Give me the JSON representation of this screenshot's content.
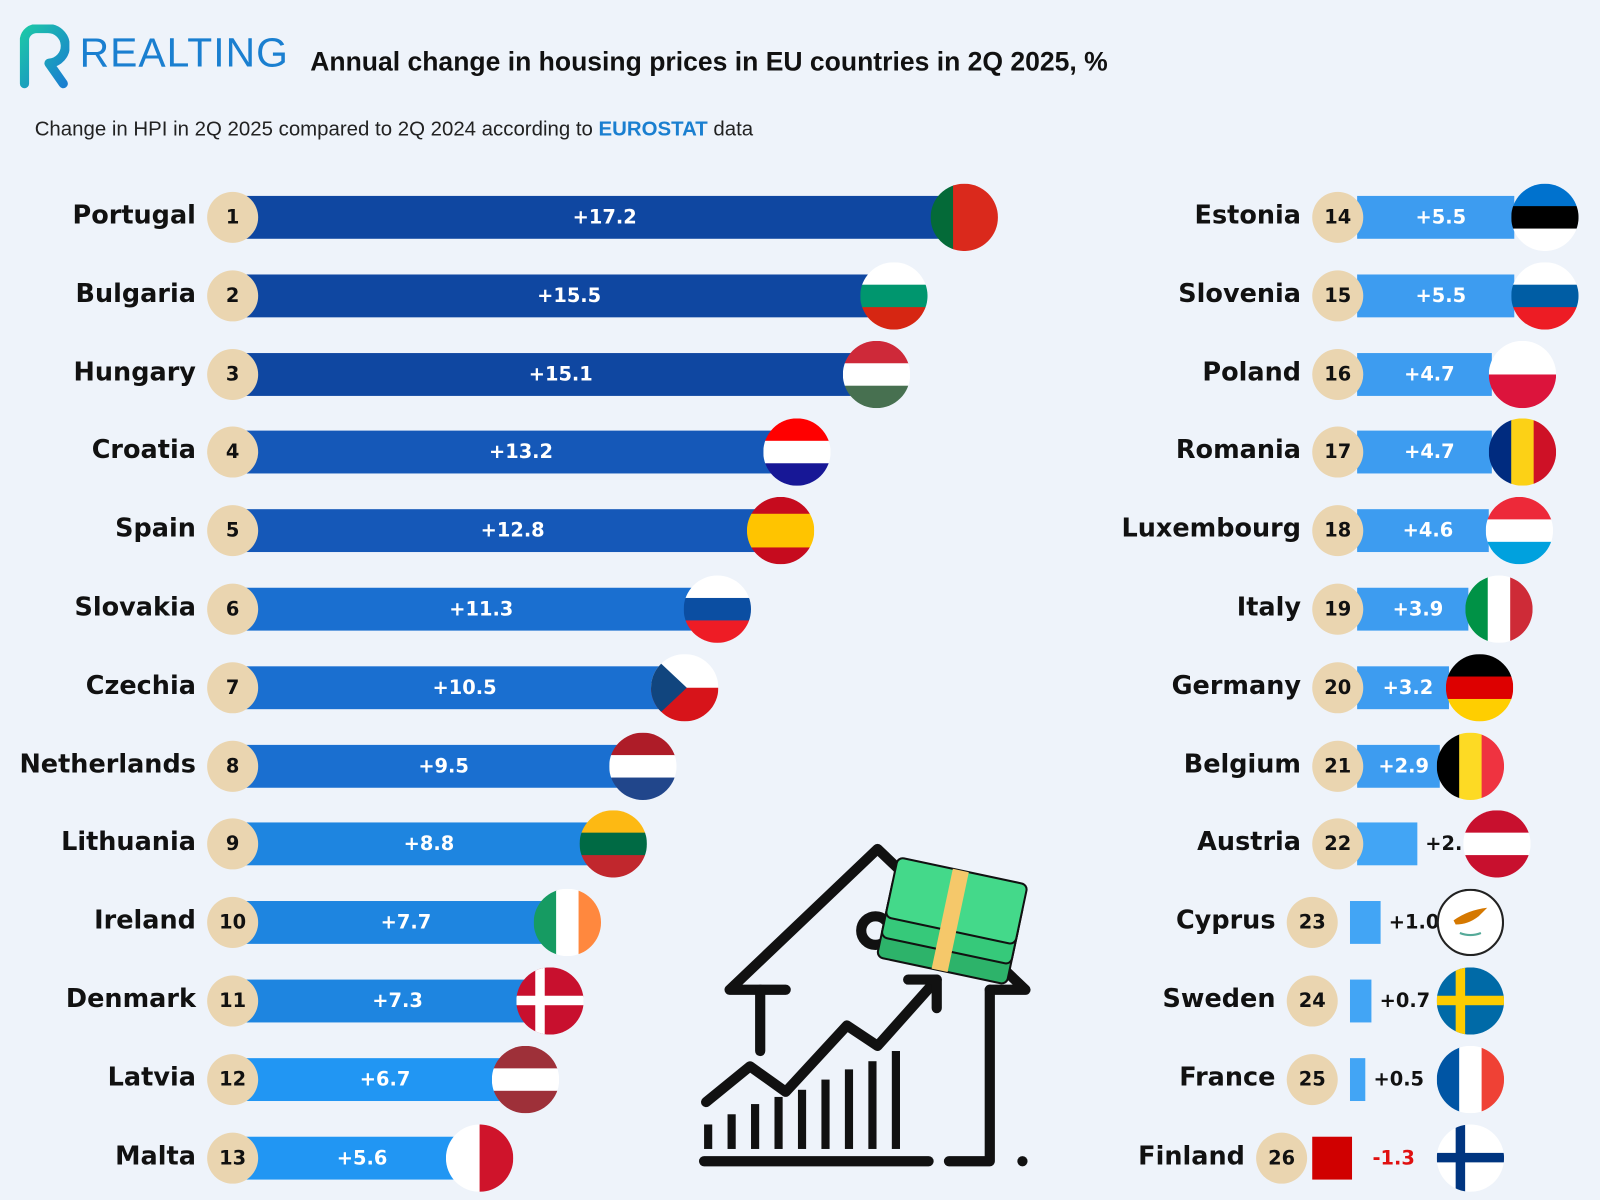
{
  "brand": {
    "name": "REALTING"
  },
  "header": {
    "title": "Annual change in housing prices in EU countries in 2Q 2025, %",
    "subtitle_pre": "Change in HPI in 2Q 2025 compared to 2Q 2024 according to",
    "subtitle_source": "EUROSTAT",
    "subtitle_post": "data"
  },
  "chart_data": {
    "type": "bar",
    "orientation": "horizontal",
    "title": "Annual change in housing prices in EU countries in 2Q 2025, %",
    "rows": [
      {
        "rank": "1",
        "country": "Portugal",
        "value": 17.2,
        "label": "+17.2",
        "color": "#0f47a1",
        "flag": {
          "type": "v",
          "colors": [
            "#046a38",
            "#da291c",
            "#da291c"
          ]
        }
      },
      {
        "rank": "2",
        "country": "Bulgaria",
        "value": 15.5,
        "label": "+15.5",
        "color": "#0f47a1",
        "flag": {
          "type": "h",
          "colors": [
            "#ffffff",
            "#00966e",
            "#d62612"
          ]
        }
      },
      {
        "rank": "3",
        "country": "Hungary",
        "value": 15.1,
        "label": "+15.1",
        "color": "#0f47a1",
        "flag": {
          "type": "h",
          "colors": [
            "#ce2939",
            "#ffffff",
            "#477050"
          ]
        }
      },
      {
        "rank": "4",
        "country": "Croatia",
        "value": 13.2,
        "label": "+13.2",
        "color": "#1558b8",
        "flag": {
          "type": "h",
          "colors": [
            "#ff0000",
            "#ffffff",
            "#171796"
          ]
        }
      },
      {
        "rank": "5",
        "country": "Spain",
        "value": 12.8,
        "label": "+12.8",
        "color": "#1558b8",
        "flag": {
          "type": "h",
          "colors": [
            "#c60b1e",
            "#ffc400",
            "#ffc400",
            "#c60b1e"
          ]
        }
      },
      {
        "rank": "6",
        "country": "Slovakia",
        "value": 11.3,
        "label": "+11.3",
        "color": "#1a6fd0",
        "flag": {
          "type": "h",
          "colors": [
            "#ffffff",
            "#0b4ea2",
            "#ee1c25"
          ]
        }
      },
      {
        "rank": "7",
        "country": "Czechia",
        "value": 10.5,
        "label": "+10.5",
        "color": "#1a6fd0",
        "flag": {
          "type": "cz",
          "colors": [
            "#ffffff",
            "#d7141a",
            "#11457e"
          ]
        }
      },
      {
        "rank": "8",
        "country": "Netherlands",
        "value": 9.5,
        "label": "+9.5",
        "color": "#1a6fd0",
        "flag": {
          "type": "h",
          "colors": [
            "#ae1c28",
            "#ffffff",
            "#21468b"
          ]
        }
      },
      {
        "rank": "9",
        "country": "Lithuania",
        "value": 8.8,
        "label": "+8.8",
        "color": "#1e85e0",
        "flag": {
          "type": "h",
          "colors": [
            "#fdb913",
            "#006a44",
            "#c1272d"
          ]
        }
      },
      {
        "rank": "10",
        "country": "Ireland",
        "value": 7.7,
        "label": "+7.7",
        "color": "#1e85e0",
        "flag": {
          "type": "v",
          "colors": [
            "#169b62",
            "#ffffff",
            "#ff883e"
          ]
        }
      },
      {
        "rank": "11",
        "country": "Denmark",
        "value": 7.3,
        "label": "+7.3",
        "color": "#1e85e0",
        "flag": {
          "type": "nordic",
          "colors": [
            "#c8102e",
            "#ffffff"
          ]
        }
      },
      {
        "rank": "12",
        "country": "Latvia",
        "value": 6.7,
        "label": "+6.7",
        "color": "#2196f3",
        "flag": {
          "type": "h",
          "colors": [
            "#9e3039",
            "#ffffff",
            "#9e3039"
          ]
        }
      },
      {
        "rank": "13",
        "country": "Malta",
        "value": 5.6,
        "label": "+5.6",
        "color": "#2196f3",
        "flag": {
          "type": "v",
          "colors": [
            "#ffffff",
            "#cf142b"
          ]
        }
      },
      {
        "rank": "14",
        "country": "Estonia",
        "value": 5.5,
        "label": "+5.5",
        "color": "#3d9cf0",
        "flag": {
          "type": "h",
          "colors": [
            "#0072ce",
            "#000000",
            "#ffffff"
          ]
        }
      },
      {
        "rank": "15",
        "country": "Slovenia",
        "value": 5.5,
        "label": "+5.5",
        "color": "#3d9cf0",
        "flag": {
          "type": "h",
          "colors": [
            "#ffffff",
            "#005da4",
            "#ed1c24"
          ]
        }
      },
      {
        "rank": "16",
        "country": "Poland",
        "value": 4.7,
        "label": "+4.7",
        "color": "#3d9cf0",
        "flag": {
          "type": "h",
          "colors": [
            "#ffffff",
            "#dc143c"
          ]
        }
      },
      {
        "rank": "17",
        "country": "Romania",
        "value": 4.7,
        "label": "+4.7",
        "color": "#3d9cf0",
        "flag": {
          "type": "v",
          "colors": [
            "#002b7f",
            "#fcd116",
            "#ce1126"
          ]
        }
      },
      {
        "rank": "18",
        "country": "Luxembourg",
        "value": 4.6,
        "label": "+4.6",
        "color": "#3d9cf0",
        "flag": {
          "type": "h",
          "colors": [
            "#ed2939",
            "#ffffff",
            "#00a1de"
          ]
        }
      },
      {
        "rank": "19",
        "country": "Italy",
        "value": 3.9,
        "label": "+3.9",
        "color": "#3d9cf0",
        "flag": {
          "type": "v",
          "colors": [
            "#009246",
            "#ffffff",
            "#ce2b37"
          ]
        }
      },
      {
        "rank": "20",
        "country": "Germany",
        "value": 3.2,
        "label": "+3.2",
        "color": "#3d9cf0",
        "flag": {
          "type": "h",
          "colors": [
            "#000000",
            "#dd0000",
            "#ffce00"
          ]
        }
      },
      {
        "rank": "21",
        "country": "Belgium",
        "value": 2.9,
        "label": "+2.9",
        "color": "#3d9cf0",
        "flag": {
          "type": "v",
          "colors": [
            "#000000",
            "#fdda24",
            "#ef3340"
          ]
        }
      },
      {
        "rank": "22",
        "country": "Austria",
        "value": 2.1,
        "label": "+2.1",
        "color": "#42a5f5",
        "flag": {
          "type": "h",
          "colors": [
            "#c8102e",
            "#ffffff",
            "#c8102e"
          ]
        }
      },
      {
        "rank": "23",
        "country": "Cyprus",
        "value": 1.0,
        "label": "+1.0",
        "color": "#42a5f5",
        "flag": {
          "type": "cy",
          "colors": [
            "#ffffff",
            "#d57800"
          ]
        }
      },
      {
        "rank": "24",
        "country": "Sweden",
        "value": 0.7,
        "label": "+0.7",
        "color": "#42a5f5",
        "flag": {
          "type": "nordic",
          "colors": [
            "#006aa7",
            "#fecc00"
          ]
        }
      },
      {
        "rank": "25",
        "country": "France",
        "value": 0.5,
        "label": "+0.5",
        "color": "#42a5f5",
        "flag": {
          "type": "v",
          "colors": [
            "#0055a4",
            "#ffffff",
            "#ef4135"
          ]
        }
      },
      {
        "rank": "26",
        "country": "Finland",
        "value": -1.3,
        "label": "-1.3",
        "color": "#d00000",
        "flag": {
          "type": "nordic",
          "colors": [
            "#ffffff",
            "#003580"
          ]
        }
      }
    ]
  }
}
